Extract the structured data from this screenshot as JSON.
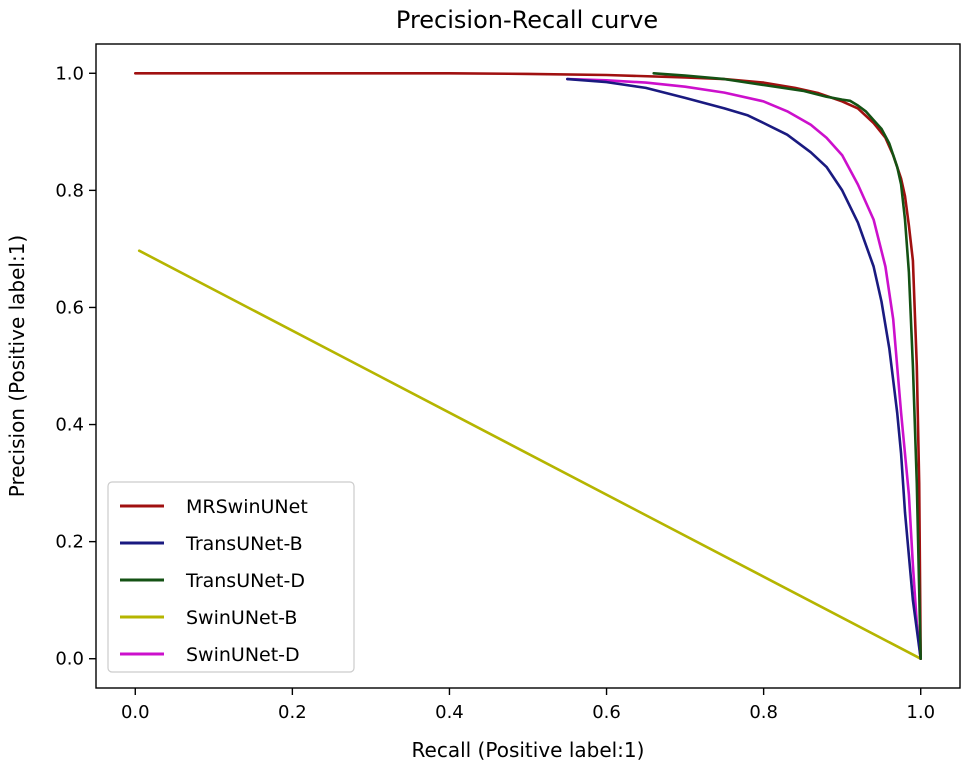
{
  "chart_data": {
    "type": "line",
    "title": "Precision-Recall curve",
    "xlabel": "Recall (Positive label:1)",
    "ylabel": "Precision (Positive label:1)",
    "xlim": [
      -0.05,
      1.05
    ],
    "ylim": [
      -0.05,
      1.05
    ],
    "xticks": [
      0.0,
      0.2,
      0.4,
      0.6,
      0.8,
      1.0
    ],
    "yticks": [
      0.0,
      0.2,
      0.4,
      0.6,
      0.8,
      1.0
    ],
    "xtick_labels": [
      "0.0",
      "0.2",
      "0.4",
      "0.6",
      "0.8",
      "1.0"
    ],
    "ytick_labels": [
      "0.0",
      "0.2",
      "0.4",
      "0.6",
      "0.8",
      "1.0"
    ],
    "grid": false,
    "legend_position": "lower-left",
    "series": [
      {
        "name": "MRSwinUNet",
        "color": "#a01010",
        "x": [
          0.0,
          0.2,
          0.4,
          0.5,
          0.6,
          0.7,
          0.75,
          0.8,
          0.84,
          0.87,
          0.9,
          0.92,
          0.94,
          0.955,
          0.965,
          0.975,
          0.98,
          0.985,
          0.99,
          0.995,
          0.998,
          1.0
        ],
        "y": [
          1.0,
          1.0,
          1.0,
          0.999,
          0.997,
          0.993,
          0.99,
          0.984,
          0.975,
          0.966,
          0.952,
          0.94,
          0.915,
          0.89,
          0.86,
          0.82,
          0.79,
          0.74,
          0.68,
          0.5,
          0.3,
          0.0
        ]
      },
      {
        "name": "TransUNet-B",
        "color": "#1a1a80",
        "x": [
          0.55,
          0.6,
          0.65,
          0.7,
          0.75,
          0.78,
          0.8,
          0.83,
          0.86,
          0.88,
          0.9,
          0.92,
          0.94,
          0.95,
          0.96,
          0.97,
          0.975,
          0.98,
          0.99,
          1.0
        ],
        "y": [
          0.99,
          0.985,
          0.975,
          0.958,
          0.94,
          0.928,
          0.915,
          0.895,
          0.865,
          0.84,
          0.8,
          0.745,
          0.67,
          0.61,
          0.53,
          0.42,
          0.35,
          0.25,
          0.1,
          0.0
        ]
      },
      {
        "name": "TransUNet-D",
        "color": "#145214",
        "x": [
          0.66,
          0.7,
          0.75,
          0.8,
          0.85,
          0.88,
          0.9,
          0.91,
          0.92,
          0.93,
          0.94,
          0.95,
          0.96,
          0.97,
          0.975,
          0.98,
          0.985,
          0.99,
          0.995,
          1.0
        ],
        "y": [
          1.0,
          0.996,
          0.99,
          0.98,
          0.97,
          0.96,
          0.955,
          0.953,
          0.945,
          0.935,
          0.92,
          0.905,
          0.88,
          0.84,
          0.81,
          0.75,
          0.66,
          0.5,
          0.3,
          0.0
        ]
      },
      {
        "name": "SwinUNet-B",
        "color": "#b5b500",
        "x": [
          0.005,
          1.0
        ],
        "y": [
          0.697,
          0.0
        ]
      },
      {
        "name": "SwinUNet-D",
        "color": "#cc10cc",
        "x": [
          0.55,
          0.6,
          0.65,
          0.7,
          0.75,
          0.8,
          0.83,
          0.86,
          0.88,
          0.9,
          0.92,
          0.94,
          0.955,
          0.965,
          0.975,
          0.985,
          0.99,
          0.995,
          1.0
        ],
        "y": [
          0.99,
          0.988,
          0.984,
          0.977,
          0.967,
          0.952,
          0.935,
          0.912,
          0.89,
          0.86,
          0.81,
          0.75,
          0.67,
          0.58,
          0.42,
          0.28,
          0.16,
          0.06,
          0.0
        ]
      }
    ]
  }
}
